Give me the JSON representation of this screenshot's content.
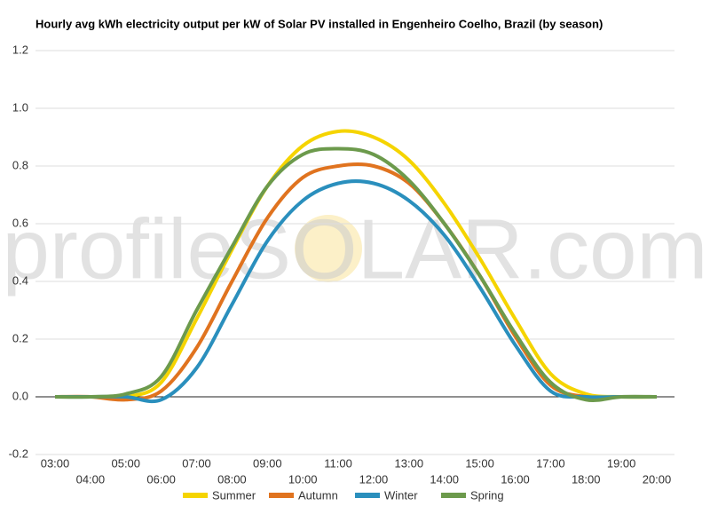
{
  "chart_data": {
    "type": "line",
    "title": "Hourly avg kWh electricity output per kW of Solar PV installed in Engenheiro Coelho, Brazil (by season)",
    "watermark": "profileSOLAR.com",
    "categories": [
      "03:00",
      "04:00",
      "05:00",
      "06:00",
      "07:00",
      "08:00",
      "09:00",
      "10:00",
      "11:00",
      "12:00",
      "13:00",
      "14:00",
      "15:00",
      "16:00",
      "17:00",
      "18:00",
      "19:00",
      "20:00"
    ],
    "series": [
      {
        "name": "Summer",
        "color": "#f5d400",
        "values": [
          0,
          0,
          0,
          0.05,
          0.27,
          0.51,
          0.73,
          0.87,
          0.92,
          0.9,
          0.82,
          0.67,
          0.48,
          0.27,
          0.08,
          0.01,
          0,
          0
        ]
      },
      {
        "name": "Autumn",
        "color": "#e0731f",
        "values": [
          0,
          0,
          -0.01,
          0.02,
          0.17,
          0.4,
          0.62,
          0.76,
          0.8,
          0.8,
          0.74,
          0.6,
          0.42,
          0.21,
          0.04,
          0,
          0,
          0
        ]
      },
      {
        "name": "Winter",
        "color": "#2a8fbd",
        "values": [
          0,
          0,
          0,
          -0.01,
          0.1,
          0.32,
          0.54,
          0.68,
          0.74,
          0.74,
          0.68,
          0.56,
          0.38,
          0.18,
          0.02,
          0,
          0,
          0
        ]
      },
      {
        "name": "Spring",
        "color": "#6c9a4c",
        "values": [
          0,
          0,
          0.01,
          0.07,
          0.3,
          0.52,
          0.73,
          0.84,
          0.86,
          0.84,
          0.75,
          0.6,
          0.42,
          0.22,
          0.05,
          -0.01,
          0,
          0
        ]
      }
    ],
    "ylim": [
      -0.2,
      1.2
    ],
    "yticks": [
      -0.2,
      {
        "value": 0,
        "label": "0.0"
      },
      0.2,
      0.4,
      0.6,
      0.8,
      {
        "value": 1,
        "label": "1.0"
      },
      1.2
    ],
    "grid": true,
    "legend": "bottom"
  }
}
